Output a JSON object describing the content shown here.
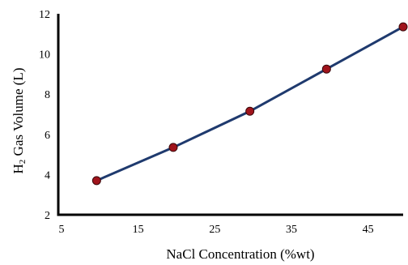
{
  "chart_data": {
    "type": "line",
    "title": "",
    "xlabel": "NaCl Concentration (%wt)",
    "ylabel": {
      "prefix": "H",
      "subscript": "2",
      "suffix": " Gas Volume (L)"
    },
    "xlim": [
      5,
      50
    ],
    "ylim": [
      2,
      12
    ],
    "xticks": [
      5,
      15,
      25,
      35,
      45
    ],
    "yticks": [
      2,
      4,
      6,
      8,
      10,
      12
    ],
    "grid": false,
    "series": [
      {
        "x": [
          10,
          20,
          30,
          40,
          50
        ],
        "y": [
          3.7,
          5.35,
          7.15,
          9.25,
          11.35
        ],
        "line_color": "#1f3a6e",
        "marker_color": "#a0141c"
      }
    ]
  }
}
